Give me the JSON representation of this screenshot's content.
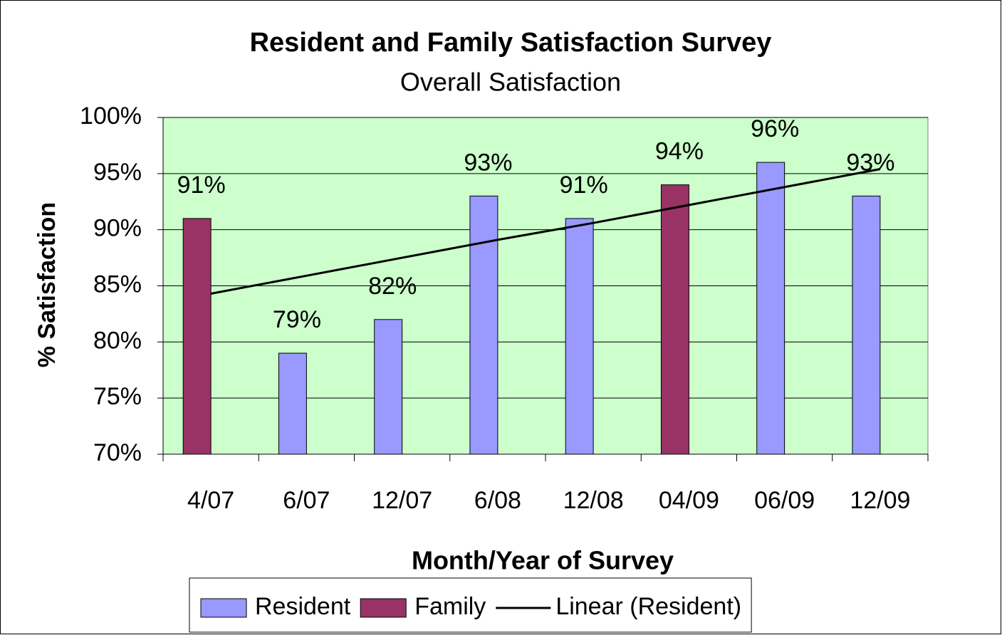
{
  "chart_data": {
    "type": "bar",
    "title": "Resident and Family Satisfaction Survey",
    "subtitle": "Overall Satisfaction",
    "x_label": "Month/Year of Survey",
    "y_label": "% Satisfaction",
    "categories": [
      "4/07",
      "6/07",
      "12/07",
      "6/08",
      "12/08",
      "04/09",
      "06/09",
      "12/09"
    ],
    "series": [
      {
        "name": "Resident",
        "color": "#9999ff",
        "values": [
          null,
          79,
          82,
          93,
          91,
          null,
          96,
          93
        ],
        "value_labels": [
          null,
          "79%",
          "82%",
          "93%",
          "91%",
          null,
          "96%",
          "93%"
        ]
      },
      {
        "name": "Family",
        "color": "#993366",
        "values": [
          91,
          null,
          null,
          null,
          null,
          94,
          null,
          null
        ],
        "value_labels": [
          "91%",
          null,
          null,
          null,
          null,
          "94%",
          null,
          null
        ]
      },
      {
        "name": "Linear (Resident)",
        "type": "line",
        "color": "#000000",
        "values": [
          84.3,
          85.9,
          87.5,
          89.1,
          90.6,
          92.2,
          93.8,
          95.4
        ]
      }
    ],
    "ylim": [
      70,
      100
    ],
    "yticks": [
      {
        "value": 70,
        "label": "70%"
      },
      {
        "value": 75,
        "label": "75%"
      },
      {
        "value": 80,
        "label": "80%"
      },
      {
        "value": 85,
        "label": "85%"
      },
      {
        "value": 90,
        "label": "90%"
      },
      {
        "value": 95,
        "label": "95%"
      },
      {
        "value": 100,
        "label": "100%"
      }
    ],
    "grid": true,
    "plot_background": "#ccffcc",
    "legend": "bottom"
  }
}
